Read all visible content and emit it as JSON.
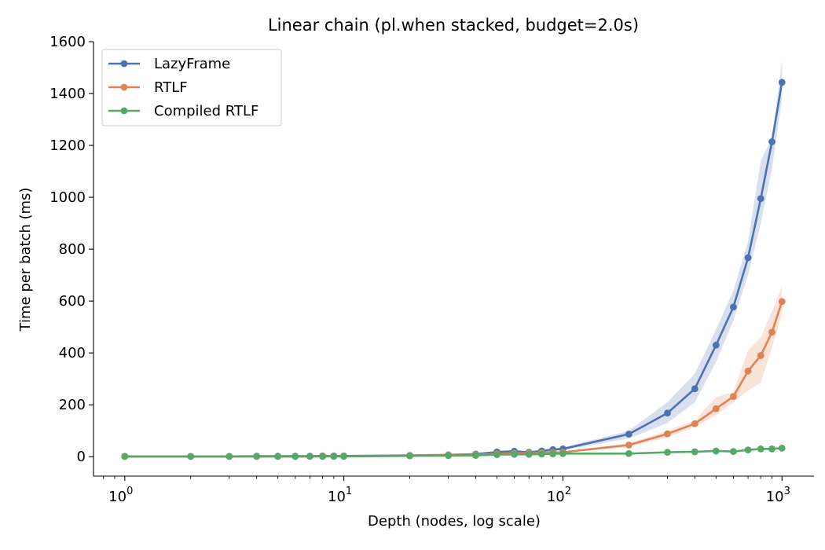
{
  "chart_data": {
    "type": "line",
    "title": "Linear chain (pl.when stacked, budget=2.0s)",
    "xlabel": "Depth (nodes, log scale)",
    "ylabel": "Time per batch (ms)",
    "xscale": "log",
    "xlim": [
      0.72,
      1400
    ],
    "ylim": [
      -75,
      1600
    ],
    "yticks": [
      0,
      200,
      400,
      600,
      800,
      1000,
      1200,
      1400,
      1600
    ],
    "xticks": [
      {
        "value": 1,
        "base": "10",
        "exp": "0"
      },
      {
        "value": 10,
        "base": "10",
        "exp": "1"
      },
      {
        "value": 100,
        "base": "10",
        "exp": "2"
      },
      {
        "value": 1000,
        "base": "10",
        "exp": "3"
      }
    ],
    "grid": false,
    "legend_position": "top-left",
    "series": [
      {
        "name": "LazyFrame",
        "color": "#4c72b0",
        "x": [
          1,
          2,
          3,
          4,
          5,
          6,
          7,
          8,
          9,
          10,
          20,
          30,
          40,
          50,
          60,
          70,
          80,
          90,
          100,
          200,
          300,
          400,
          500,
          600,
          700,
          800,
          900,
          1000
        ],
        "y": [
          1,
          1,
          1,
          2,
          2,
          2,
          2,
          3,
          3,
          3,
          5,
          7,
          10,
          18,
          21,
          17,
          22,
          27,
          30,
          87,
          168,
          262,
          430,
          577,
          767,
          995,
          1214,
          1443
        ],
        "lower": [
          1,
          1,
          1,
          1,
          1,
          1,
          1,
          2,
          2,
          2,
          4,
          5,
          8,
          13,
          16,
          14,
          18,
          22,
          25,
          70,
          130,
          210,
          365,
          525,
          700,
          900,
          1110,
          1380
        ],
        "upper": [
          1,
          1,
          1,
          2,
          2,
          2,
          2,
          3,
          3,
          4,
          6,
          8,
          12,
          22,
          26,
          20,
          26,
          32,
          35,
          100,
          210,
          320,
          490,
          640,
          830,
          1140,
          1230,
          1525
        ]
      },
      {
        "name": "RTLF",
        "color": "#dd8452",
        "x": [
          1,
          2,
          3,
          4,
          5,
          6,
          7,
          8,
          9,
          10,
          20,
          30,
          40,
          50,
          60,
          70,
          80,
          90,
          100,
          200,
          300,
          400,
          500,
          600,
          700,
          800,
          900,
          1000
        ],
        "y": [
          1,
          1,
          1,
          1,
          1,
          1,
          1,
          2,
          2,
          2,
          4,
          6,
          8,
          11,
          13,
          14,
          15,
          16,
          17,
          45,
          88,
          127,
          185,
          232,
          330,
          390,
          480,
          598
        ],
        "lower": [
          1,
          1,
          1,
          1,
          1,
          1,
          1,
          1,
          1,
          1,
          3,
          5,
          6,
          8,
          10,
          11,
          12,
          13,
          14,
          38,
          75,
          115,
          160,
          210,
          255,
          285,
          420,
          550
        ],
        "upper": [
          1,
          1,
          1,
          2,
          2,
          2,
          2,
          2,
          2,
          3,
          5,
          7,
          10,
          13,
          15,
          16,
          17,
          18,
          20,
          52,
          100,
          140,
          230,
          250,
          410,
          460,
          560,
          655
        ]
      },
      {
        "name": "Compiled RTLF",
        "color": "#55a868",
        "x": [
          1,
          2,
          3,
          4,
          5,
          6,
          7,
          8,
          9,
          10,
          20,
          30,
          40,
          50,
          60,
          70,
          80,
          90,
          100,
          200,
          300,
          400,
          500,
          600,
          700,
          800,
          900,
          1000
        ],
        "y": [
          1,
          1,
          1,
          1,
          1,
          1,
          1,
          1,
          1,
          1,
          3,
          4,
          5,
          8,
          9,
          9,
          10,
          11,
          12,
          12,
          17,
          19,
          22,
          20,
          26,
          30,
          30,
          33
        ],
        "lower": [
          1,
          1,
          1,
          1,
          1,
          1,
          1,
          1,
          1,
          1,
          2,
          3,
          4,
          6,
          7,
          7,
          8,
          9,
          10,
          10,
          15,
          17,
          19,
          18,
          23,
          27,
          27,
          30
        ],
        "upper": [
          1,
          1,
          1,
          1,
          1,
          1,
          1,
          1,
          1,
          2,
          4,
          5,
          6,
          10,
          11,
          11,
          12,
          13,
          14,
          14,
          19,
          21,
          25,
          23,
          29,
          33,
          33,
          36
        ]
      }
    ]
  }
}
